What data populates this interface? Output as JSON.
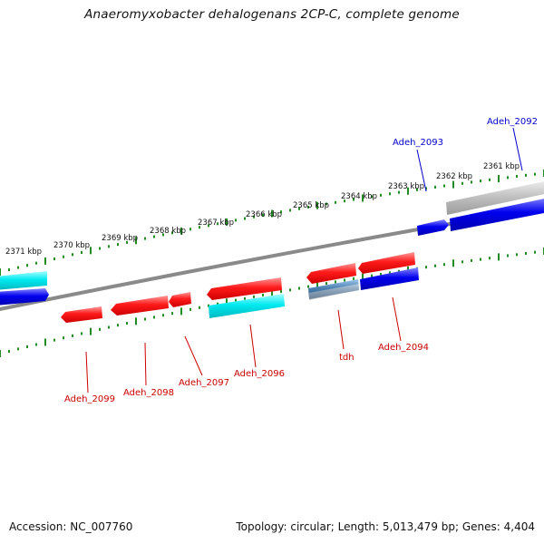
{
  "header": {
    "title": "Anaeromyxobacter dehalogenans 2CP-C, complete genome"
  },
  "footer": {
    "accession": "Accession: NC_007760",
    "summary": "Topology: circular; Length: 5,013,479 bp; Genes: 4,404"
  },
  "colors": {
    "backbone": "#777777",
    "tick": "#228b22",
    "plus_label": "#0000cc",
    "minus_label": "#cc0000",
    "red_gene": "#ff1a1a",
    "cyan_gene": "#00e5ee",
    "blue_gene": "#0000ee",
    "gray_gene": "#c8c8c8"
  },
  "scale_labels": [
    "2361 kbp",
    "2362 kbp",
    "2363 kbp",
    "2364 kbp",
    "2365 kbp",
    "2366 kbp",
    "2367 kbp",
    "2368 kbp",
    "2369 kbp",
    "2370 kbp",
    "2371 kbp"
  ],
  "gene_labels": [
    {
      "id": "adeh_2092",
      "text": "Adeh_2092",
      "strand": "plus"
    },
    {
      "id": "adeh_2093",
      "text": "Adeh_2093",
      "strand": "plus"
    },
    {
      "id": "adeh_2094",
      "text": "Adeh_2094",
      "strand": "minus"
    },
    {
      "id": "tdh",
      "text": "tdh",
      "strand": "minus"
    },
    {
      "id": "adeh_2096",
      "text": "Adeh_2096",
      "strand": "minus"
    },
    {
      "id": "adeh_2097",
      "text": "Adeh_2097",
      "strand": "minus"
    },
    {
      "id": "adeh_2098",
      "text": "Adeh_2098",
      "strand": "minus"
    },
    {
      "id": "adeh_2099",
      "text": "Adeh_2099",
      "strand": "minus"
    }
  ]
}
